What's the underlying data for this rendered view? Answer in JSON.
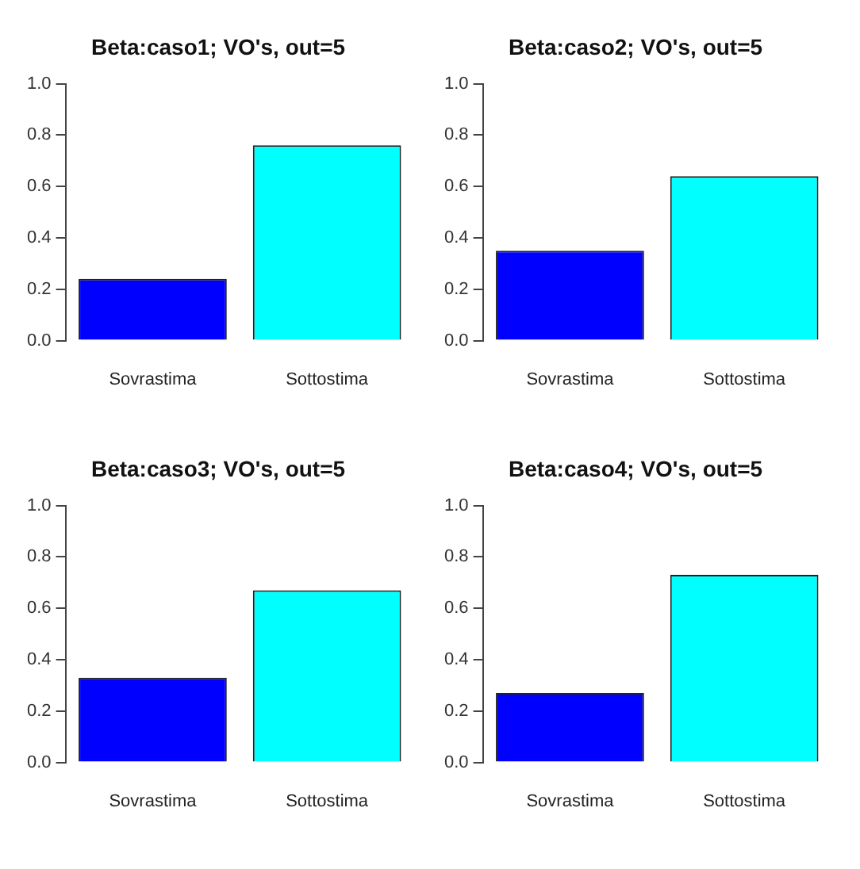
{
  "chart_data": [
    {
      "type": "bar",
      "title": "Beta:caso1; VO's, out=5",
      "categories": [
        "Sovrastima",
        "Sottostima"
      ],
      "values": [
        0.24,
        0.76
      ],
      "colors": [
        "#0000ff",
        "#00ffff"
      ],
      "ylim": [
        0,
        1
      ],
      "yticks": [
        {
          "value": 0,
          "label": "0.0"
        },
        {
          "value": 0.2,
          "label": "0.2"
        },
        {
          "value": 0.4,
          "label": "0.4"
        },
        {
          "value": 0.6,
          "label": "0.6"
        },
        {
          "value": 0.8,
          "label": "0.8"
        },
        {
          "value": 1,
          "label": "1.0"
        }
      ],
      "grid": false,
      "legend": false
    },
    {
      "type": "bar",
      "title": "Beta:caso2; VO's, out=5",
      "categories": [
        "Sovrastima",
        "Sottostima"
      ],
      "values": [
        0.35,
        0.64
      ],
      "colors": [
        "#0000ff",
        "#00ffff"
      ],
      "ylim": [
        0,
        1
      ],
      "yticks": [
        {
          "value": 0,
          "label": "0.0"
        },
        {
          "value": 0.2,
          "label": "0.2"
        },
        {
          "value": 0.4,
          "label": "0.4"
        },
        {
          "value": 0.6,
          "label": "0.6"
        },
        {
          "value": 0.8,
          "label": "0.8"
        },
        {
          "value": 1,
          "label": "1.0"
        }
      ],
      "grid": false,
      "legend": false
    },
    {
      "type": "bar",
      "title": "Beta:caso3; VO's, out=5",
      "categories": [
        "Sovrastima",
        "Sottostima"
      ],
      "values": [
        0.33,
        0.67
      ],
      "colors": [
        "#0000ff",
        "#00ffff"
      ],
      "ylim": [
        0,
        1
      ],
      "yticks": [
        {
          "value": 0,
          "label": "0.0"
        },
        {
          "value": 0.2,
          "label": "0.2"
        },
        {
          "value": 0.4,
          "label": "0.4"
        },
        {
          "value": 0.6,
          "label": "0.6"
        },
        {
          "value": 0.8,
          "label": "0.8"
        },
        {
          "value": 1,
          "label": "1.0"
        }
      ],
      "grid": false,
      "legend": false
    },
    {
      "type": "bar",
      "title": "Beta:caso4; VO's, out=5",
      "categories": [
        "Sovrastima",
        "Sottostima"
      ],
      "values": [
        0.27,
        0.73
      ],
      "colors": [
        "#0000ff",
        "#00ffff"
      ],
      "ylim": [
        0,
        1
      ],
      "yticks": [
        {
          "value": 0,
          "label": "0.0"
        },
        {
          "value": 0.2,
          "label": "0.2"
        },
        {
          "value": 0.4,
          "label": "0.4"
        },
        {
          "value": 0.6,
          "label": "0.6"
        },
        {
          "value": 0.8,
          "label": "0.8"
        },
        {
          "value": 1,
          "label": "1.0"
        }
      ],
      "grid": false,
      "legend": false
    }
  ]
}
